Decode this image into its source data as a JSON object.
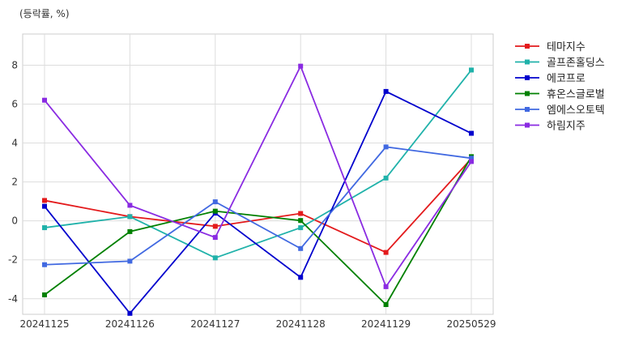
{
  "unit_label": "(등락률, %)",
  "chart_data": {
    "type": "line",
    "categories": [
      "20241125",
      "20241126",
      "20241127",
      "20241128",
      "20241129",
      "20250529"
    ],
    "ylim": [
      -4.8,
      9.6
    ],
    "yticks": [
      -4,
      -2,
      0,
      2,
      4,
      6,
      8
    ],
    "grid": true,
    "legend_position": "outside-right-top",
    "series": [
      {
        "name": "테마지수",
        "color": "#e31a1c",
        "values": [
          1.05,
          0.22,
          -0.28,
          0.38,
          -1.62,
          3.2
        ]
      },
      {
        "name": "골프존홀딩스",
        "color": "#20b2aa",
        "values": [
          -0.35,
          0.22,
          -1.9,
          -0.35,
          2.2,
          7.75
        ]
      },
      {
        "name": "에코프로",
        "color": "#0000cd",
        "values": [
          0.75,
          -4.75,
          0.4,
          -2.9,
          6.65,
          4.5
        ]
      },
      {
        "name": "휴온스글로벌",
        "color": "#008000",
        "values": [
          -3.8,
          -0.55,
          0.5,
          0.02,
          -4.3,
          3.3
        ]
      },
      {
        "name": "엠에스오토텍",
        "color": "#4169e1",
        "values": [
          -2.25,
          -2.07,
          0.98,
          -1.42,
          3.8,
          3.22
        ]
      },
      {
        "name": "하림지주",
        "color": "#8a2be2",
        "values": [
          6.2,
          0.8,
          -0.85,
          7.95,
          -3.38,
          3.05
        ]
      }
    ]
  }
}
